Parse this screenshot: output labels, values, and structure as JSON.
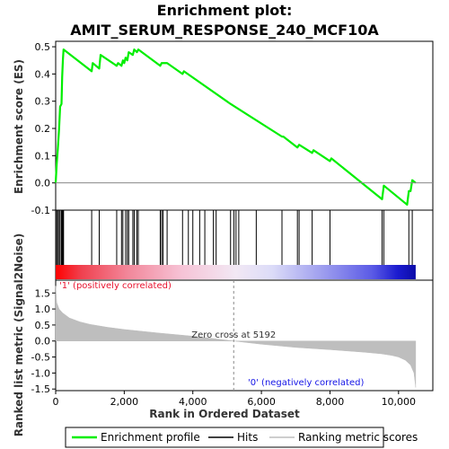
{
  "chart_data": {
    "type": "line",
    "title_line1": "Enrichment plot:",
    "title_line2": "AMIT_SERUM_RESPONSE_240_MCF10A",
    "xlabel": "Rank in Ordered Dataset",
    "ylabel_es": "Enrichment score (ES)",
    "ylabel_metric": "Ranked list metric (Signal2Noise)",
    "x_range": [
      0,
      11000
    ],
    "x_ticks": [
      0,
      2000,
      4000,
      6000,
      8000,
      10000
    ],
    "x_tick_labels": [
      "0",
      "2,000",
      "4,000",
      "6,000",
      "8,000",
      "10,000"
    ],
    "es_range": [
      -0.1,
      0.52
    ],
    "es_ticks": [
      -0.1,
      0.0,
      0.1,
      0.2,
      0.3,
      0.4,
      0.5
    ],
    "es_tick_labels": [
      "-0.1",
      "0.0",
      "0.1",
      "0.2",
      "0.3",
      "0.4",
      "0.5"
    ],
    "metric_range": [
      -1.55,
      1.9
    ],
    "metric_ticks": [
      -1.5,
      -1.0,
      -0.5,
      0.0,
      0.5,
      1.0,
      1.5
    ],
    "metric_tick_labels": [
      "-1.5",
      "-1.0",
      "-0.5",
      "0.0",
      "0.5",
      "1.0",
      "1.5"
    ],
    "total_genes": 10500,
    "zero_cross_rank": 5192,
    "zero_cross_label": "Zero cross at 5192",
    "positive_label": "'1' (positively correlated)",
    "negative_label": "'0' (negatively correlated)",
    "enrichment_profile": [
      [
        0,
        0.0
      ],
      [
        30,
        0.07
      ],
      [
        60,
        0.12
      ],
      [
        100,
        0.2
      ],
      [
        130,
        0.28
      ],
      [
        170,
        0.29
      ],
      [
        190,
        0.39
      ],
      [
        210,
        0.45
      ],
      [
        230,
        0.49
      ],
      [
        1050,
        0.41
      ],
      [
        1080,
        0.44
      ],
      [
        1270,
        0.42
      ],
      [
        1310,
        0.47
      ],
      [
        1780,
        0.43
      ],
      [
        1820,
        0.44
      ],
      [
        1920,
        0.43
      ],
      [
        1960,
        0.45
      ],
      [
        2000,
        0.44
      ],
      [
        2040,
        0.46
      ],
      [
        2090,
        0.45
      ],
      [
        2130,
        0.48
      ],
      [
        2250,
        0.47
      ],
      [
        2290,
        0.49
      ],
      [
        2370,
        0.48
      ],
      [
        2410,
        0.49
      ],
      [
        3050,
        0.43
      ],
      [
        3090,
        0.44
      ],
      [
        3130,
        0.44
      ],
      [
        3250,
        0.44
      ],
      [
        3700,
        0.4
      ],
      [
        3740,
        0.41
      ],
      [
        5100,
        0.29
      ],
      [
        6600,
        0.17
      ],
      [
        6640,
        0.17
      ],
      [
        7050,
        0.13
      ],
      [
        7100,
        0.14
      ],
      [
        7480,
        0.11
      ],
      [
        7520,
        0.12
      ],
      [
        8000,
        0.08
      ],
      [
        8040,
        0.09
      ],
      [
        9520,
        -0.06
      ],
      [
        9570,
        -0.01
      ],
      [
        10250,
        -0.08
      ],
      [
        10300,
        -0.03
      ],
      [
        10350,
        -0.03
      ],
      [
        10400,
        0.01
      ],
      [
        10500,
        0.0
      ]
    ],
    "hits": [
      30,
      60,
      100,
      130,
      170,
      190,
      210,
      230,
      1050,
      1270,
      1780,
      1920,
      1960,
      2040,
      2090,
      2130,
      2250,
      2290,
      2370,
      2410,
      3050,
      3090,
      3130,
      3250,
      3700,
      3870,
      4000,
      4200,
      4350,
      4600,
      4680,
      5100,
      5200,
      5260,
      5340,
      5850,
      6600,
      7050,
      7100,
      7480,
      8000,
      9520,
      9570,
      10300,
      10400
    ],
    "metric_profile": [
      [
        0,
        1.72
      ],
      [
        30,
        1.2
      ],
      [
        100,
        1.0
      ],
      [
        200,
        0.88
      ],
      [
        400,
        0.72
      ],
      [
        700,
        0.6
      ],
      [
        1000,
        0.52
      ],
      [
        1500,
        0.43
      ],
      [
        2000,
        0.36
      ],
      [
        3000,
        0.25
      ],
      [
        4000,
        0.15
      ],
      [
        5192,
        0.0
      ],
      [
        6000,
        -0.1
      ],
      [
        7000,
        -0.2
      ],
      [
        8000,
        -0.27
      ],
      [
        9000,
        -0.35
      ],
      [
        9500,
        -0.4
      ],
      [
        9800,
        -0.45
      ],
      [
        10000,
        -0.5
      ],
      [
        10200,
        -0.6
      ],
      [
        10350,
        -0.75
      ],
      [
        10450,
        -1.0
      ],
      [
        10490,
        -1.35
      ],
      [
        10500,
        -1.45
      ]
    ],
    "legend": [
      "Enrichment profile",
      "Hits",
      "Ranking metric scores"
    ],
    "colors": {
      "profile": "#00ee00",
      "hits": "#000000",
      "metric_fill": "#bebebe",
      "positive_text": "#e8112d",
      "negative_text": "#1414e6",
      "zero_line": "#888888"
    },
    "grid": false
  }
}
